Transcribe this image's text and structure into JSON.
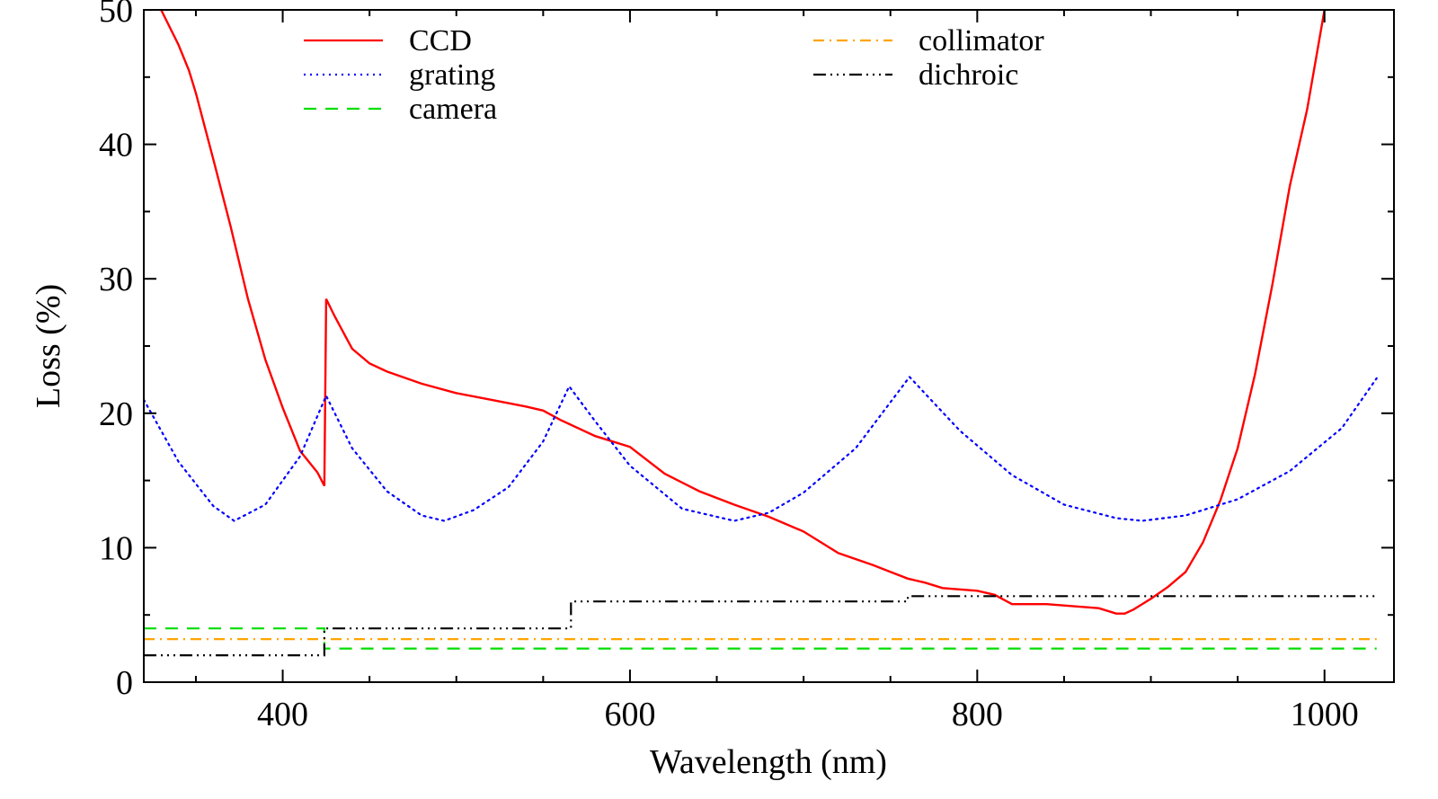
{
  "chart_data": {
    "type": "line",
    "title": "",
    "xlabel": "Wavelength (nm)",
    "ylabel": "Loss (%)",
    "xlim": [
      320,
      1040
    ],
    "ylim": [
      0,
      50
    ],
    "xticks": [
      400,
      600,
      800,
      1000
    ],
    "yticks": [
      0,
      10,
      20,
      30,
      40,
      50
    ],
    "grid": false,
    "legend": "top",
    "series": [
      {
        "name": "CCD",
        "color": "#ff0000",
        "style": "solid",
        "x": [
          330,
          340,
          346,
          350,
          360,
          370,
          380,
          390,
          400,
          410,
          420,
          424,
          425,
          430,
          440,
          450,
          460,
          480,
          500,
          520,
          540,
          550,
          560,
          580,
          600,
          620,
          640,
          660,
          680,
          700,
          720,
          740,
          760,
          770,
          780,
          800,
          810,
          820,
          830,
          840,
          850,
          860,
          870,
          880,
          885,
          890,
          900,
          910,
          920,
          930,
          940,
          950,
          960,
          970,
          980,
          990,
          1000
        ],
        "y": [
          50,
          47.4,
          45.5,
          43.8,
          38.9,
          33.9,
          28.5,
          24.0,
          20.4,
          17.2,
          15.6,
          14.6,
          28.5,
          27.2,
          24.8,
          23.7,
          23.1,
          22.2,
          21.5,
          21.0,
          20.5,
          20.2,
          19.5,
          18.3,
          17.5,
          15.5,
          14.2,
          13.2,
          12.3,
          11.2,
          9.6,
          8.7,
          7.7,
          7.4,
          7.0,
          6.8,
          6.5,
          5.8,
          5.8,
          5.8,
          5.7,
          5.6,
          5.5,
          5.1,
          5.1,
          5.4,
          6.2,
          7.1,
          8.2,
          10.4,
          13.5,
          17.4,
          22.9,
          29.6,
          36.9,
          42.6,
          50
        ]
      },
      {
        "name": "grating",
        "color": "#0000ff",
        "style": "dotted",
        "x": [
          320,
          340,
          360,
          372,
          390,
          410,
          425,
          440,
          460,
          480,
          493,
          510,
          530,
          550,
          565,
          580,
          600,
          630,
          660,
          680,
          700,
          730,
          761,
          790,
          820,
          850,
          880,
          895,
          920,
          950,
          980,
          1010,
          1030
        ],
        "y": [
          21.0,
          16.4,
          13.1,
          12.0,
          13.2,
          16.8,
          21.3,
          17.4,
          14.2,
          12.4,
          12.0,
          12.8,
          14.5,
          17.9,
          22.0,
          19.4,
          16.1,
          12.9,
          12.0,
          12.6,
          14.1,
          17.4,
          22.7,
          18.7,
          15.4,
          13.2,
          12.2,
          12.0,
          12.4,
          13.6,
          15.7,
          18.9,
          22.6
        ]
      },
      {
        "name": "camera",
        "color": "#00dd00",
        "style": "dashed",
        "x": [
          320,
          424,
          424,
          1030
        ],
        "y": [
          4.0,
          4.0,
          2.5,
          2.5
        ]
      },
      {
        "name": "collimator",
        "color": "#ffa500",
        "style": "dashdot",
        "x": [
          320,
          1030
        ],
        "y": [
          3.2,
          3.2
        ]
      },
      {
        "name": "dichroic",
        "color": "#000000",
        "style": "dashdotdotdot",
        "x": [
          320,
          424,
          424,
          566,
          566,
          760,
          760,
          1030
        ],
        "y": [
          2.0,
          2.0,
          4.0,
          4.0,
          6.0,
          6.0,
          6.4,
          6.4
        ]
      }
    ]
  }
}
